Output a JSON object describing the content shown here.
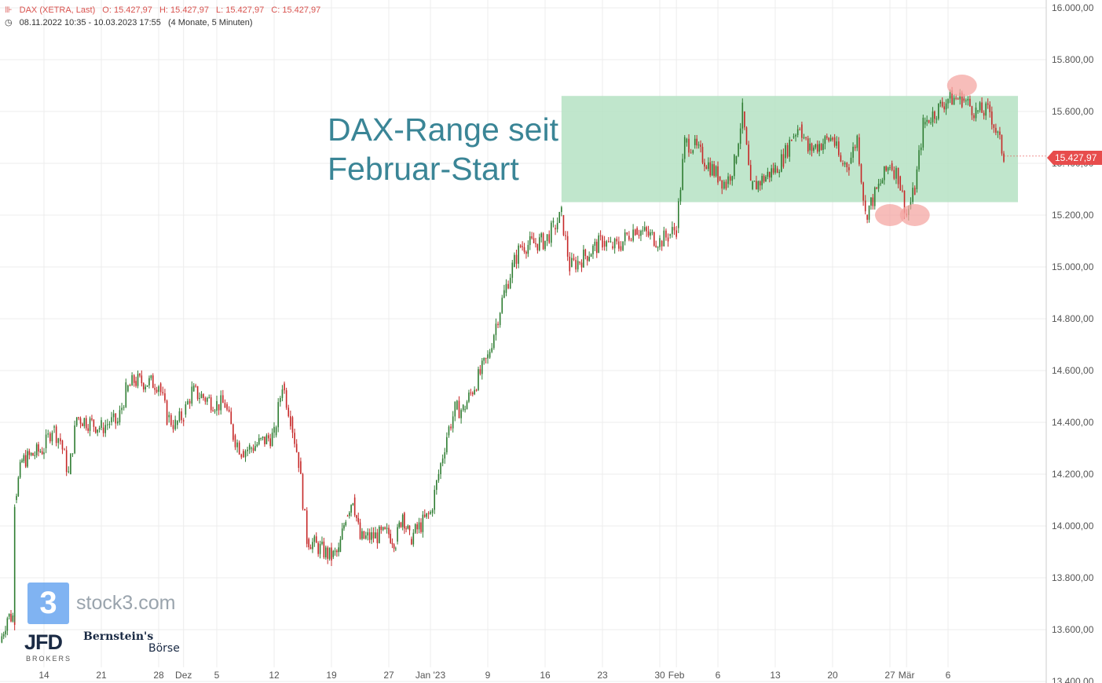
{
  "header": {
    "instrument": "DAX (XETRA, Last)",
    "open": "O: 15.427,97",
    "high": "H: 15.427,97",
    "low": "L: 15.427,97",
    "close": "C: 15.427,97",
    "period": "08.11.2022 10:35 - 10.03.2023 17:55",
    "interval": "(4 Monate, 5 Minuten)"
  },
  "annotation": {
    "line1": "DAX-Range seit",
    "line2": "Februar-Start"
  },
  "last_price_label": "15.427,97",
  "watermarks": {
    "stock3_digit": "3",
    "stock3": "stock3.com",
    "jfd": "JFD",
    "jfd_sub": "BROKERS",
    "bernstein": "Bernstein's",
    "boerse": "Börse"
  },
  "colors": {
    "range_fill": "#b9e3c7",
    "candle_up": "#2e7d32",
    "candle_down": "#c62828",
    "highlight": "#f4a7a3",
    "annotation_text": "#3a8596",
    "price_tag": "#e74c4c"
  },
  "chart_data": {
    "type": "candlestick",
    "y_axis": {
      "ticks": [
        13400,
        13600,
        13800,
        14000,
        14200,
        14400,
        14600,
        14800,
        15000,
        15200,
        15400,
        15600,
        15800,
        16000
      ],
      "tick_labels": [
        "13.400,00",
        "13.600,00",
        "13.800,00",
        "14.000,00",
        "14.200,00",
        "14.400,00",
        "14.600,00",
        "14.800,00",
        "15.000,00",
        "15.200,00",
        "15.400,00",
        "15.600,00",
        "15.800,00",
        "16.000,00"
      ],
      "ylim": [
        13400,
        16000
      ],
      "position": "right"
    },
    "x_axis": {
      "range": [
        "2022-11-08",
        "2023-03-10"
      ],
      "ticks": [
        {
          "date": "2022-11-14",
          "label": "14"
        },
        {
          "date": "2022-11-21",
          "label": "21"
        },
        {
          "date": "2022-11-28",
          "label": "28"
        },
        {
          "date": "2022-12-01",
          "label": "Dez"
        },
        {
          "date": "2022-12-05",
          "label": "5"
        },
        {
          "date": "2022-12-12",
          "label": "12"
        },
        {
          "date": "2022-12-19",
          "label": "19"
        },
        {
          "date": "2022-12-27",
          "label": "27"
        },
        {
          "date": "2023-01-02",
          "label": "Jan '23"
        },
        {
          "date": "2023-01-09",
          "label": "9"
        },
        {
          "date": "2023-01-16",
          "label": "16"
        },
        {
          "date": "2023-01-23",
          "label": "23"
        },
        {
          "date": "2023-01-30",
          "label": "30"
        },
        {
          "date": "2023-02-01",
          "label": "Feb"
        },
        {
          "date": "2023-02-06",
          "label": "6"
        },
        {
          "date": "2023-02-13",
          "label": "13"
        },
        {
          "date": "2023-02-20",
          "label": "20"
        },
        {
          "date": "2023-02-27",
          "label": "27"
        },
        {
          "date": "2023-03-01",
          "label": "Mär"
        },
        {
          "date": "2023-03-06",
          "label": "6"
        }
      ]
    },
    "grid": true,
    "series": [
      {
        "values": [
          [
            "2022-11-08",
            13550
          ],
          [
            "2022-11-09",
            13650
          ],
          [
            "2022-11-10",
            13650
          ],
          [
            "2022-11-10",
            14100
          ],
          [
            "2022-11-11",
            14250
          ],
          [
            "2022-11-14",
            14300
          ],
          [
            "2022-11-15",
            14380
          ],
          [
            "2022-11-16",
            14330
          ],
          [
            "2022-11-17",
            14200
          ],
          [
            "2022-11-18",
            14420
          ],
          [
            "2022-11-21",
            14380
          ],
          [
            "2022-11-22",
            14400
          ],
          [
            "2022-11-23",
            14400
          ],
          [
            "2022-11-24",
            14520
          ],
          [
            "2022-11-25",
            14560
          ],
          [
            "2022-11-28",
            14550
          ],
          [
            "2022-11-29",
            14420
          ],
          [
            "2022-11-30",
            14390
          ],
          [
            "2022-12-01",
            14430
          ],
          [
            "2022-12-02",
            14520
          ],
          [
            "2022-12-05",
            14470
          ],
          [
            "2022-12-06",
            14470
          ],
          [
            "2022-12-07",
            14350
          ],
          [
            "2022-12-08",
            14290
          ],
          [
            "2022-12-09",
            14300
          ],
          [
            "2022-12-12",
            14350
          ],
          [
            "2022-12-13",
            14550
          ],
          [
            "2022-12-14",
            14420
          ],
          [
            "2022-12-15",
            14250
          ],
          [
            "2022-12-16",
            13950
          ],
          [
            "2022-12-19",
            13880
          ],
          [
            "2022-12-20",
            13900
          ],
          [
            "2022-12-21",
            14040
          ],
          [
            "2022-12-22",
            14110
          ],
          [
            "2022-12-23",
            13950
          ],
          [
            "2022-12-27",
            13970
          ],
          [
            "2022-12-28",
            13940
          ],
          [
            "2022-12-29",
            14050
          ],
          [
            "2022-12-30",
            13950
          ],
          [
            "2023-01-02",
            14050
          ],
          [
            "2023-01-03",
            14200
          ],
          [
            "2023-01-04",
            14350
          ],
          [
            "2023-01-05",
            14450
          ],
          [
            "2023-01-06",
            14450
          ],
          [
            "2023-01-09",
            14650
          ],
          [
            "2023-01-10",
            14780
          ],
          [
            "2023-01-11",
            14900
          ],
          [
            "2023-01-12",
            15000
          ],
          [
            "2023-01-13",
            15080
          ],
          [
            "2023-01-16",
            15100
          ],
          [
            "2023-01-17",
            15150
          ],
          [
            "2023-01-18",
            15200
          ],
          [
            "2023-01-19",
            15000
          ],
          [
            "2023-01-20",
            15020
          ],
          [
            "2023-01-23",
            15100
          ],
          [
            "2023-01-24",
            15080
          ],
          [
            "2023-01-25",
            15080
          ],
          [
            "2023-01-26",
            15120
          ],
          [
            "2023-01-27",
            15150
          ],
          [
            "2023-01-30",
            15100
          ],
          [
            "2023-01-31",
            15120
          ],
          [
            "2023-02-01",
            15150
          ],
          [
            "2023-02-02",
            15480
          ],
          [
            "2023-02-03",
            15470
          ],
          [
            "2023-02-06",
            15350
          ],
          [
            "2023-02-07",
            15320
          ],
          [
            "2023-02-08",
            15400
          ],
          [
            "2023-02-09",
            15600
          ],
          [
            "2023-02-10",
            15300
          ],
          [
            "2023-02-13",
            15380
          ],
          [
            "2023-02-14",
            15420
          ],
          [
            "2023-02-15",
            15500
          ],
          [
            "2023-02-16",
            15550
          ],
          [
            "2023-02-17",
            15450
          ],
          [
            "2023-02-20",
            15500
          ],
          [
            "2023-02-21",
            15400
          ],
          [
            "2023-02-22",
            15400
          ],
          [
            "2023-02-23",
            15500
          ],
          [
            "2023-02-24",
            15200
          ],
          [
            "2023-02-27",
            15400
          ],
          [
            "2023-02-28",
            15350
          ],
          [
            "2023-03-01",
            15200
          ],
          [
            "2023-03-02",
            15300
          ],
          [
            "2023-03-03",
            15550
          ],
          [
            "2023-03-06",
            15650
          ],
          [
            "2023-03-07",
            15650
          ],
          [
            "2023-03-08",
            15600
          ],
          [
            "2023-03-09",
            15600
          ],
          [
            "2023-03-10",
            15430
          ]
        ]
      }
    ],
    "annotations": [
      {
        "type": "rectangle",
        "x": [
          "2023-01-18",
          "2023-03-10"
        ],
        "y": [
          15250,
          15660
        ]
      },
      {
        "type": "highlight",
        "x": "2023-02-27",
        "y": 15200
      },
      {
        "type": "highlight",
        "x": "2023-03-02",
        "y": 15200
      },
      {
        "type": "highlight",
        "x": "2023-03-07",
        "y": 15700
      }
    ],
    "last_value": 15427.97
  }
}
